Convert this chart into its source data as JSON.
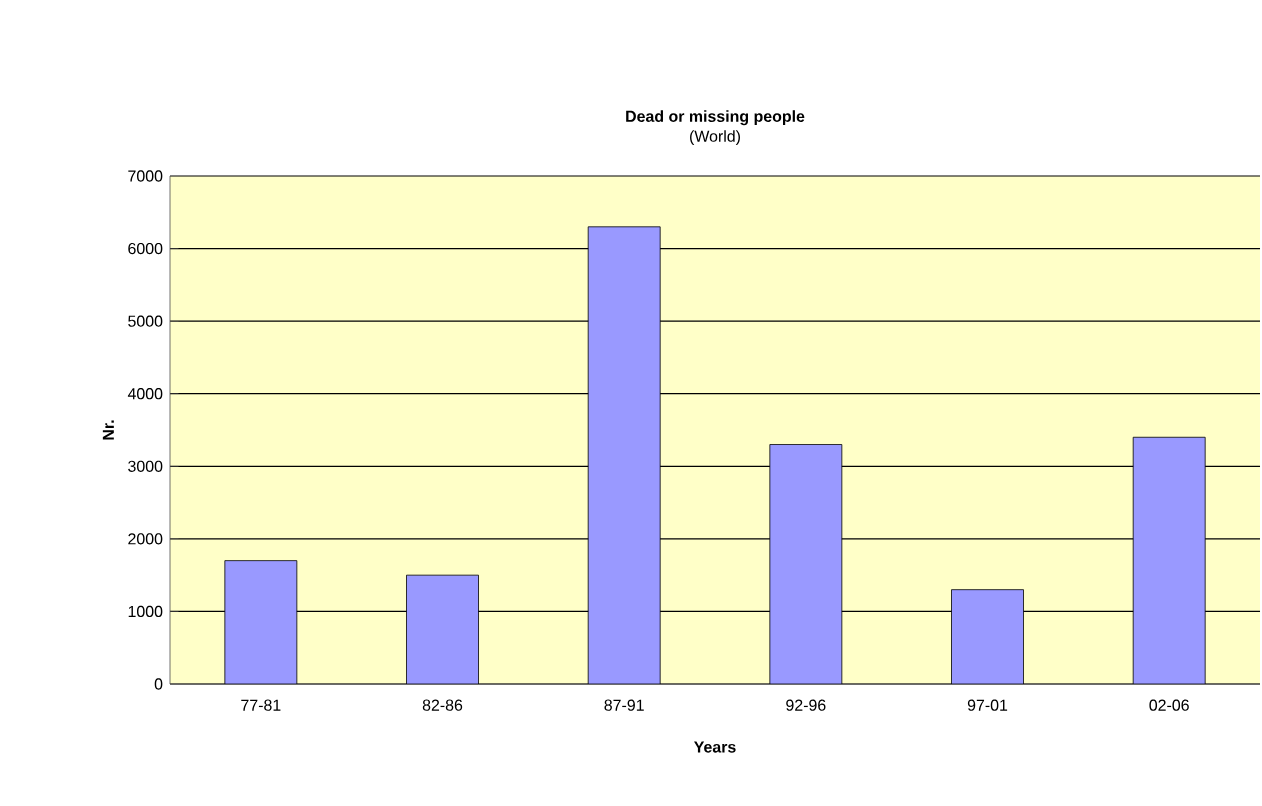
{
  "chart_data": {
    "type": "bar",
    "title": "Dead or missing people",
    "subtitle": "(World)",
    "xlabel": "Years",
    "ylabel": "Nr.",
    "categories": [
      "77-81",
      "82-86",
      "87-91",
      "92-96",
      "97-01",
      "02-06"
    ],
    "values": [
      1700,
      1500,
      6300,
      3300,
      1300,
      3400
    ],
    "color": "#9999ff",
    "ylim": [
      0,
      7000
    ],
    "yticks": [
      0,
      1000,
      2000,
      3000,
      4000,
      5000,
      6000,
      7000
    ],
    "grid": "y"
  }
}
